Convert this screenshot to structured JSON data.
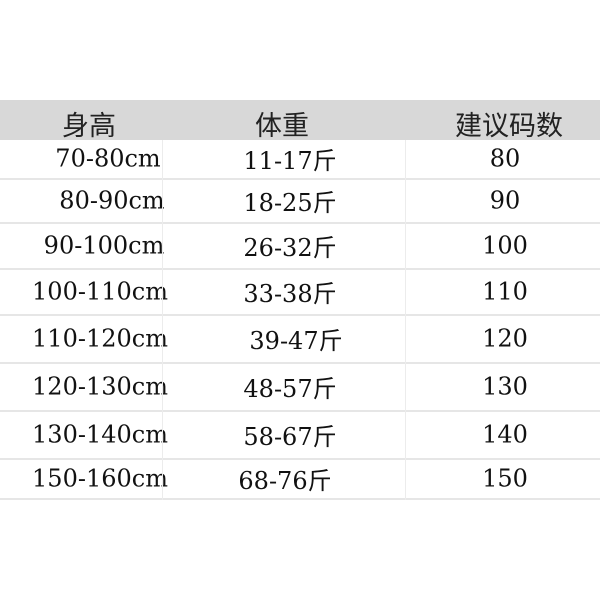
{
  "header": {
    "height": "身高",
    "weight": "体重",
    "size": "建议码数"
  },
  "rows": [
    {
      "height": "70-80cm",
      "weight": "11-17斤",
      "size": "80"
    },
    {
      "height": "80-90cm",
      "weight": "18-25斤",
      "size": "90"
    },
    {
      "height": "90-100cm",
      "weight": "26-32斤",
      "size": "100"
    },
    {
      "height": "100-110cm",
      "weight": "33-38斤",
      "size": "110"
    },
    {
      "height": "110-120cm",
      "weight": "39-47斤",
      "size": "120"
    },
    {
      "height": "120-130cm",
      "weight": "48-57斤",
      "size": "130"
    },
    {
      "height": "130-140cm",
      "weight": "58-67斤",
      "size": "140"
    },
    {
      "height": "150-160cm",
      "weight": "68-76斤",
      "size": "150"
    }
  ],
  "colors": {
    "header_bg": "#d8d8d8",
    "grid": "#e6e6e6"
  }
}
